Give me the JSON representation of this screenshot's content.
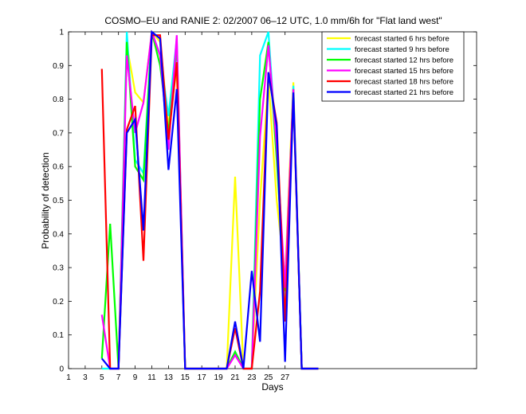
{
  "chart_data": {
    "type": "line",
    "title": "COSMO–EU and RANIE 2: 02/2007 06–12 UTC, 1.0 mm/6h for \"Flat land west\"",
    "xlabel": "Days",
    "ylabel": "Probability of detection",
    "xlim": [
      1,
      50
    ],
    "ylim": [
      0,
      1
    ],
    "x_ticks": [
      1,
      3,
      5,
      7,
      9,
      11,
      13,
      15,
      17,
      19,
      21,
      23,
      25,
      27
    ],
    "y_ticks": [
      0,
      0.1,
      0.2,
      0.3,
      0.4,
      0.5,
      0.6,
      0.7,
      0.8,
      0.9,
      1
    ],
    "y_tick_labels": [
      "0",
      "0.1",
      "0.2",
      "0.3",
      "0.4",
      "0.5",
      "0.6",
      "0.7",
      "0.8",
      "0.9",
      "1"
    ],
    "grid": false,
    "legend_position": "top-right",
    "x": [
      5,
      6,
      7,
      8,
      9,
      10,
      11,
      12,
      13,
      14,
      15,
      20,
      21,
      22,
      23,
      24,
      25,
      26,
      27,
      28,
      29,
      30,
      31
    ],
    "series": [
      {
        "name": "forecast started 6 hrs before",
        "color": "#ffff00",
        "values": [
          0.0,
          0.0,
          0.0,
          0.96,
          0.82,
          0.79,
          1.0,
          0.97,
          0.72,
          0.89,
          0.0,
          0.0,
          0.57,
          0.0,
          0.0,
          0.5,
          0.86,
          0.5,
          0.27,
          0.85,
          0.0,
          0.0,
          0.0
        ]
      },
      {
        "name": "forecast started 9 hrs before",
        "color": "#00ffff",
        "values": [
          0.0,
          0.0,
          0.0,
          1.0,
          0.62,
          0.58,
          1.0,
          0.93,
          0.75,
          0.98,
          0.0,
          0.0,
          0.05,
          0.0,
          0.0,
          0.93,
          1.0,
          0.64,
          0.2,
          0.84,
          0.0,
          0.0,
          0.0
        ]
      },
      {
        "name": "forecast started 12 hrs before",
        "color": "#00ff00",
        "values": [
          0.03,
          0.43,
          0.0,
          0.97,
          0.6,
          0.56,
          1.0,
          0.9,
          0.7,
          0.96,
          0.0,
          0.0,
          0.05,
          0.0,
          0.0,
          0.8,
          0.97,
          0.62,
          0.23,
          0.83,
          0.0,
          0.0,
          0.0
        ]
      },
      {
        "name": "forecast started 15 hrs before",
        "color": "#ff00ff",
        "values": [
          0.16,
          0.0,
          0.0,
          0.93,
          0.7,
          0.79,
          1.0,
          0.93,
          0.65,
          0.99,
          0.0,
          0.0,
          0.04,
          0.0,
          0.0,
          0.69,
          0.96,
          0.66,
          0.24,
          0.83,
          0.0,
          0.0,
          0.0
        ]
      },
      {
        "name": "forecast started 18 hrs before",
        "color": "#ff0000",
        "values": [
          0.89,
          0.0,
          0.0,
          0.71,
          0.78,
          0.32,
          0.99,
          0.99,
          0.68,
          0.91,
          0.0,
          0.0,
          0.12,
          0.0,
          0.0,
          0.23,
          0.88,
          0.73,
          0.14,
          0.81,
          0.0,
          0.0,
          0.0
        ]
      },
      {
        "name": "forecast started 21 hrs before",
        "color": "#0000ff",
        "values": [
          0.03,
          0.0,
          0.0,
          0.7,
          0.74,
          0.41,
          1.0,
          0.98,
          0.59,
          0.83,
          0.0,
          0.0,
          0.14,
          0.0,
          0.29,
          0.08,
          0.88,
          0.72,
          0.02,
          0.82,
          0.0,
          0.0,
          0.0
        ]
      }
    ]
  }
}
